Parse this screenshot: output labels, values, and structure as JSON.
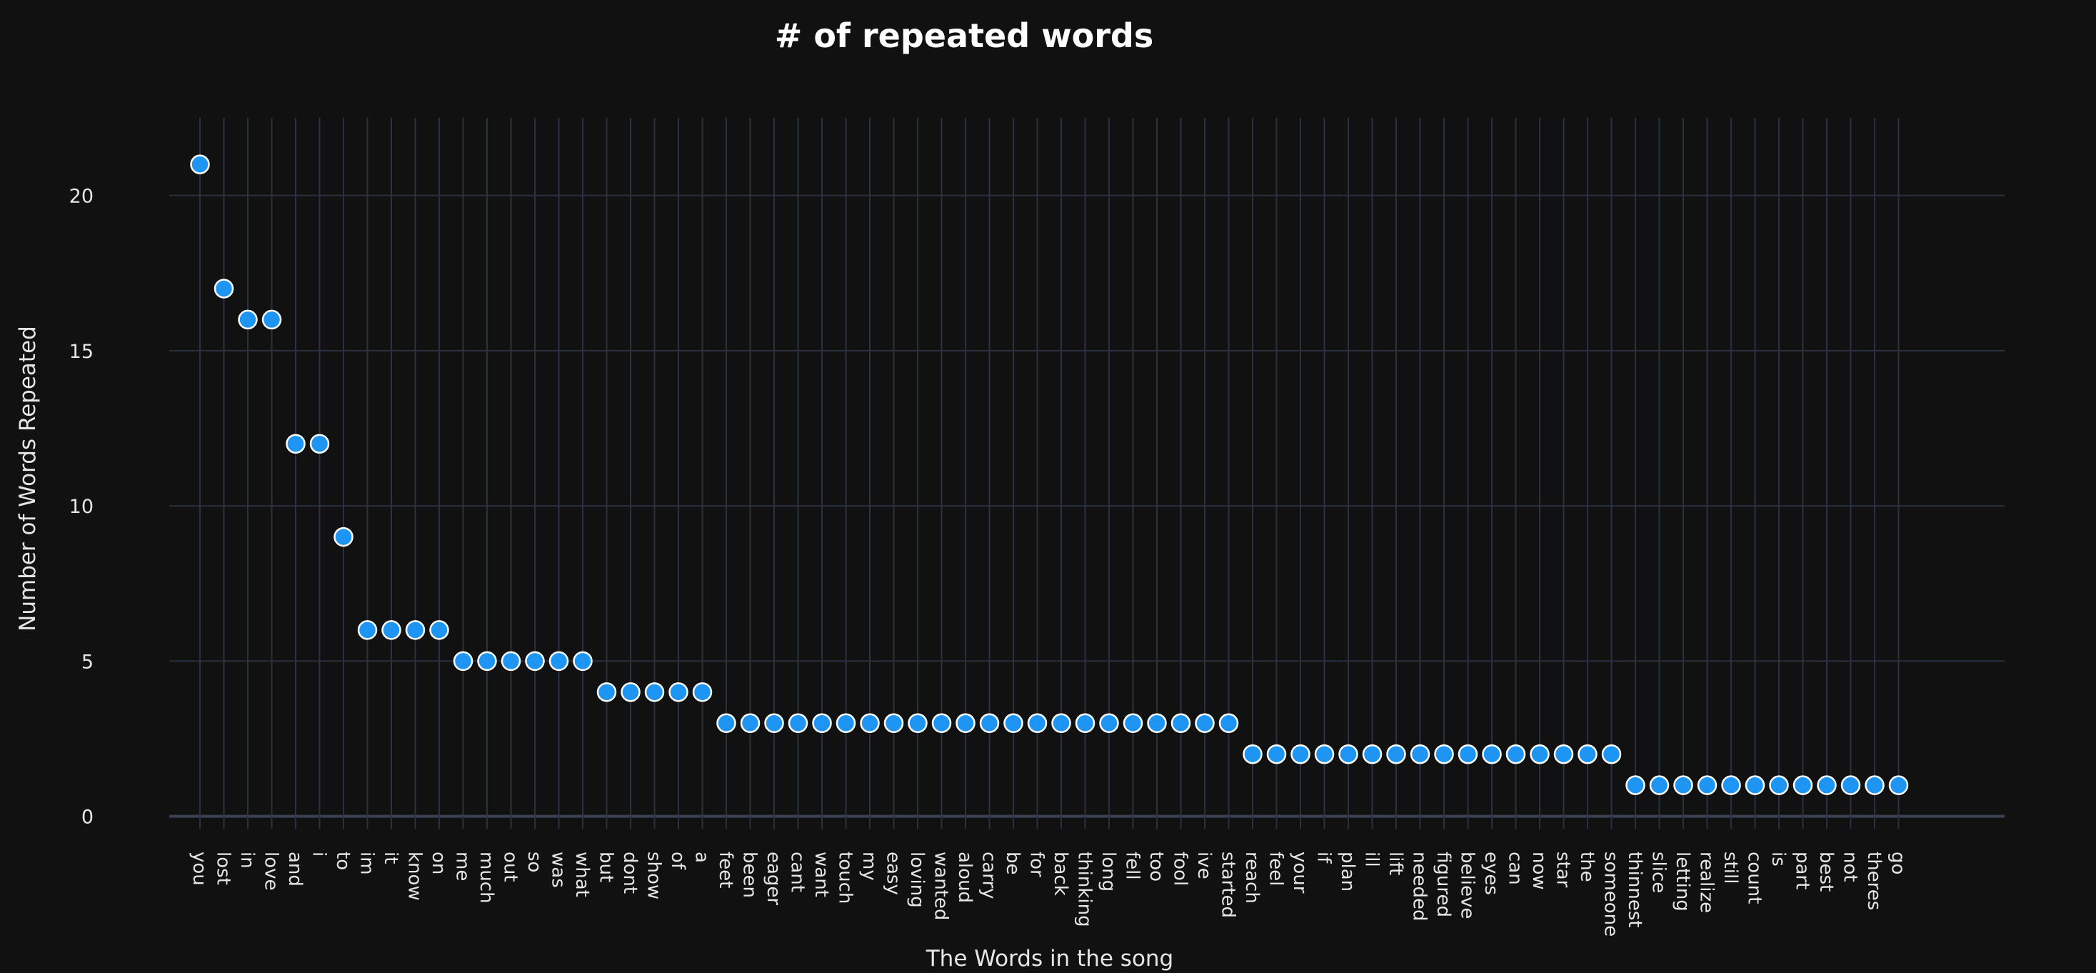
{
  "chart_data": {
    "type": "scatter",
    "title": "# of repeated words",
    "xlabel": "The Words in the song",
    "ylabel": "Number of Words Repeated",
    "ylim": [
      -0.4,
      22.5
    ],
    "yticks": [
      0,
      5,
      10,
      15,
      20
    ],
    "grid": true,
    "point_color": "#1e95f2",
    "background": "#111111",
    "categories": [
      "you",
      "lost",
      "in",
      "love",
      "and",
      "i",
      "to",
      "im",
      "it",
      "know",
      "on",
      "me",
      "much",
      "out",
      "so",
      "was",
      "what",
      "but",
      "dont",
      "show",
      "of",
      "a",
      "feet",
      "been",
      "eager",
      "cant",
      "want",
      "touch",
      "my",
      "easy",
      "loving",
      "wanted",
      "aloud",
      "carry",
      "be",
      "for",
      "back",
      "thinking",
      "long",
      "fell",
      "too",
      "fool",
      "ive",
      "started",
      "reach",
      "feel",
      "your",
      "if",
      "plan",
      "ill",
      "lift",
      "needed",
      "figured",
      "believe",
      "eyes",
      "can",
      "now",
      "star",
      "the",
      "someone",
      "thinnest",
      "slice",
      "letting",
      "realize",
      "still",
      "count",
      "is",
      "part",
      "best",
      "not",
      "theres",
      "go"
    ],
    "values": [
      21,
      17,
      16,
      16,
      12,
      12,
      9,
      6,
      6,
      6,
      6,
      5,
      5,
      5,
      5,
      5,
      5,
      4,
      4,
      4,
      4,
      4,
      3,
      3,
      3,
      3,
      3,
      3,
      3,
      3,
      3,
      3,
      3,
      3,
      3,
      3,
      3,
      3,
      3,
      3,
      3,
      3,
      3,
      3,
      2,
      2,
      2,
      2,
      2,
      2,
      2,
      2,
      2,
      2,
      2,
      2,
      2,
      2,
      2,
      2,
      1,
      1,
      1,
      1,
      1,
      1,
      1,
      1,
      1,
      1,
      1,
      1
    ]
  }
}
